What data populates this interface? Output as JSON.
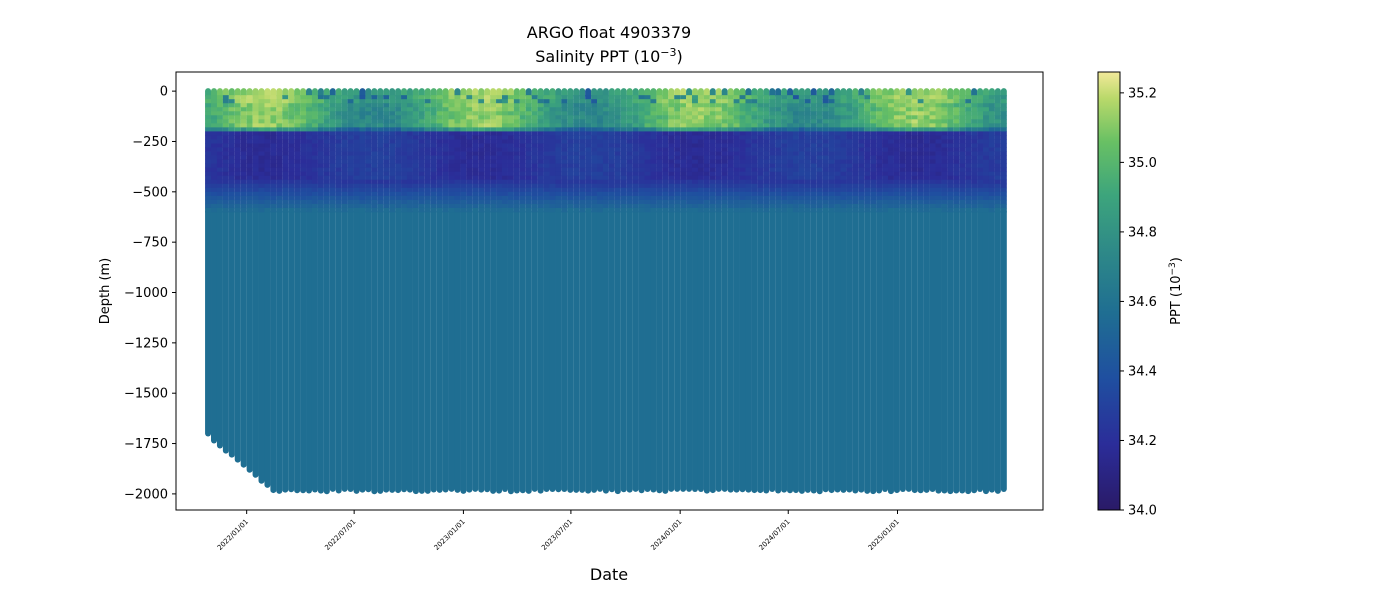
{
  "chart_data": {
    "type": "scatter",
    "title_line1": "ARGO float 4903379",
    "title_line2_prefix": "Salinity PPT (10",
    "title_line2_sup": "−3",
    "title_line2_suffix": ")",
    "xlabel": "Date",
    "ylabel": "Depth (m)",
    "colorbar_label_prefix": "PPT (10",
    "colorbar_label_sup": "−3",
    "colorbar_label_suffix": ")",
    "colormap": "haline",
    "color_range": [
      34.0,
      35.26
    ],
    "colorbar_ticks": [
      "34.0",
      "34.2",
      "34.4",
      "34.6",
      "34.8",
      "35.0",
      "35.2"
    ],
    "colorbar_tick_values": [
      34.0,
      34.2,
      34.4,
      34.6,
      34.8,
      35.0,
      35.2
    ],
    "ylim": [
      -2080,
      95
    ],
    "y_ticks": [
      "0",
      "−250",
      "−500",
      "−750",
      "−1000",
      "−1250",
      "−1500",
      "−1750",
      "−2000"
    ],
    "y_tick_values": [
      0,
      -250,
      -500,
      -750,
      -1000,
      -1250,
      -1500,
      -1750,
      -2000
    ],
    "xlim": [
      "2021-09-04",
      "2025-09-03"
    ],
    "x_ticks": [
      "2022/01/01",
      "2022/07/01",
      "2023/01/01",
      "2023/07/01",
      "2024/01/01",
      "2024/07/01",
      "2025/01/01"
    ],
    "x_tick_dates": [
      "2022-01-01",
      "2022-07-01",
      "2023-01-01",
      "2023-07-01",
      "2024-01-01",
      "2024-07-01",
      "2025-01-01"
    ],
    "profiles_first_date": "2021-10-28",
    "profiles_last_date": "2025-06-30",
    "profile_interval_days": 10,
    "profile_max_depths_initial": [
      -1700,
      -1735,
      -1760,
      -1785,
      -1805,
      -1830,
      -1855,
      -1880,
      -1905,
      -1935,
      -1955
    ],
    "profile_max_depth_typical": -1975,
    "grid": false,
    "legend": "none"
  }
}
